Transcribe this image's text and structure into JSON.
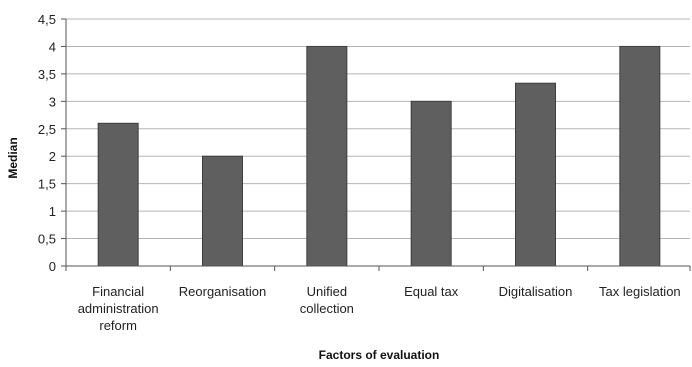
{
  "chart_data": {
    "type": "bar",
    "title": "",
    "xlabel": "Factors of evaluation",
    "ylabel": "Median",
    "categories": [
      "Financial administration reform",
      "Reorganisation",
      "Unified collection",
      "Equal tax",
      "Digitalisation",
      "Tax legislation"
    ],
    "category_lines": [
      [
        "Financial",
        "administration",
        "reform"
      ],
      [
        "Reorganisation"
      ],
      [
        "Unified",
        "collection"
      ],
      [
        "Equal tax"
      ],
      [
        "Digitalisation"
      ],
      [
        "Tax legislation"
      ]
    ],
    "values": [
      2.6,
      2.0,
      4.0,
      3.0,
      3.33,
      4.0
    ],
    "ylim": [
      0,
      4.5
    ],
    "yticks": [
      0,
      0.5,
      1,
      1.5,
      2,
      2.5,
      3,
      3.5,
      4,
      4.5
    ],
    "ytick_labels": [
      "0",
      "0,5",
      "1",
      "1,5",
      "2",
      "2,5",
      "3",
      "3,5",
      "4",
      "4,5"
    ],
    "grid": true,
    "legend": "none",
    "bar_color": "#5f5f5f",
    "bar_stroke": "#3e3e3e",
    "grid_color": "#b5b5b5"
  }
}
